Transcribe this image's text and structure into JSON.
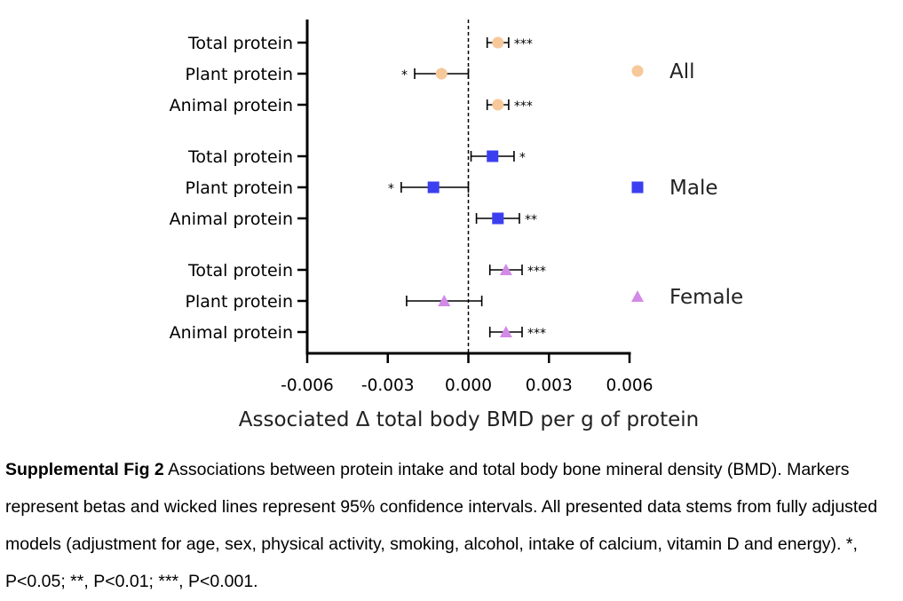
{
  "chart_data": {
    "type": "forest",
    "xlabel": "Associated Δ total body BMD per g of protein",
    "xlim": [
      -0.006,
      0.006
    ],
    "x_ticks": [
      -0.006,
      -0.003,
      0.0,
      0.003,
      0.006
    ],
    "x_tick_labels": [
      "-0.006",
      "-0.003",
      "0.000",
      "0.003",
      "0.006"
    ],
    "reference_line": 0,
    "legend_position": "right",
    "series": [
      {
        "name": "All",
        "color": "#f7c899",
        "marker": "circle",
        "rows": [
          {
            "label": "Total protein",
            "beta": 0.0011,
            "lower": 0.0007,
            "upper": 0.0015,
            "sig": "***"
          },
          {
            "label": "Plant protein",
            "beta": -0.001,
            "lower": -0.002,
            "upper": 0.0,
            "sig": "*"
          },
          {
            "label": "Animal protein",
            "beta": 0.0011,
            "lower": 0.0007,
            "upper": 0.0015,
            "sig": "***"
          }
        ]
      },
      {
        "name": "Male",
        "color": "#3b3ff0",
        "marker": "square",
        "rows": [
          {
            "label": "Total protein",
            "beta": 0.0009,
            "lower": 0.0001,
            "upper": 0.0017,
            "sig": "*"
          },
          {
            "label": "Plant protein",
            "beta": -0.0013,
            "lower": -0.0025,
            "upper": 0.0,
            "sig": "*"
          },
          {
            "label": "Animal protein",
            "beta": 0.0011,
            "lower": 0.0003,
            "upper": 0.0019,
            "sig": "**"
          }
        ]
      },
      {
        "name": "Female",
        "color": "#d38ae6",
        "marker": "triangle",
        "rows": [
          {
            "label": "Total protein",
            "beta": 0.0014,
            "lower": 0.0008,
            "upper": 0.002,
            "sig": "***"
          },
          {
            "label": "Plant protein",
            "beta": -0.0009,
            "lower": -0.0023,
            "upper": 0.0005,
            "sig": ""
          },
          {
            "label": "Animal protein",
            "beta": 0.0014,
            "lower": 0.0008,
            "upper": 0.002,
            "sig": "***"
          }
        ]
      }
    ]
  },
  "caption": {
    "bold": "Supplemental Fig 2",
    "text": " Associations between protein intake and total body bone mineral density (BMD). Markers represent betas and wicked lines represent 95% confidence intervals. All presented data stems from fully adjusted models (adjustment for age, sex, physical activity, smoking, alcohol, intake of calcium, vitamin D and energy). *, P<0.05; **, P<0.01; ***, P<0.001."
  }
}
